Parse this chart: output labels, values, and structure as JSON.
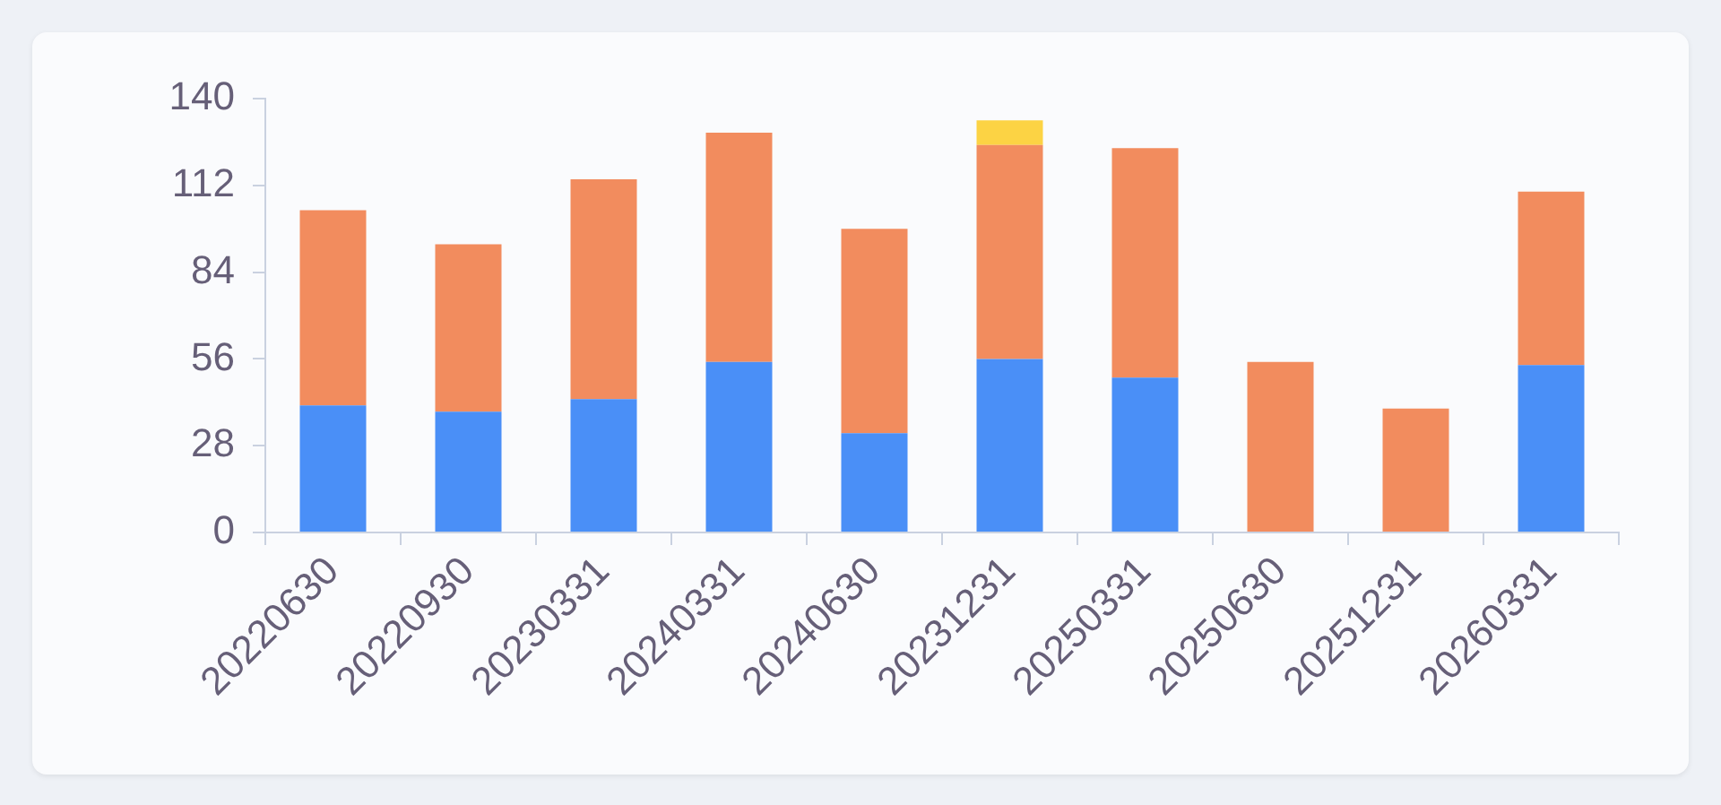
{
  "chart_data": {
    "type": "bar",
    "stacked": true,
    "categories": [
      "20220630",
      "20220930",
      "20230331",
      "20240331",
      "20240630",
      "20231231",
      "20250331",
      "20250630",
      "20251231",
      "20260331"
    ],
    "series": [
      {
        "color": "#4a8ff7",
        "values": [
          41,
          39,
          43,
          55,
          32,
          56,
          50,
          null,
          null,
          54
        ]
      },
      {
        "color": "#f28c5e",
        "values": [
          63,
          54,
          71,
          74,
          66,
          69,
          74,
          55,
          40,
          56
        ]
      },
      {
        "color": "#fcd344",
        "values": [
          null,
          null,
          null,
          null,
          null,
          8,
          null,
          null,
          null,
          null
        ]
      }
    ],
    "ylim": [
      0,
      140
    ],
    "yticks": [
      0,
      28,
      56,
      84,
      112,
      140
    ],
    "grid": false,
    "legend": false
  }
}
